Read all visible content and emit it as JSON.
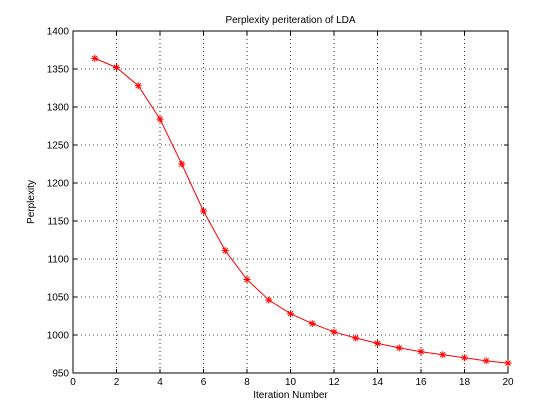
{
  "chart_data": {
    "type": "line",
    "title": "Perplexity periteration of LDA",
    "xlabel": "Iteration Number",
    "ylabel": "Perplexity",
    "xlim": [
      0,
      20
    ],
    "ylim": [
      950,
      1400
    ],
    "x_ticks": [
      0,
      2,
      4,
      6,
      8,
      10,
      12,
      14,
      16,
      18,
      20
    ],
    "y_ticks": [
      950,
      1000,
      1050,
      1100,
      1150,
      1200,
      1250,
      1300,
      1350,
      1400
    ],
    "grid": true,
    "grid_style": "dotted",
    "legend": "none",
    "series": [
      {
        "color": "#ff0000",
        "marker": "asterisk",
        "x": [
          1,
          2,
          3,
          4,
          5,
          6,
          7,
          8,
          9,
          10,
          11,
          12,
          13,
          14,
          15,
          16,
          17,
          18,
          19,
          20
        ],
        "values": [
          1364,
          1352,
          1328,
          1284,
          1225,
          1163,
          1111,
          1073,
          1046,
          1028,
          1015,
          1004,
          996,
          989,
          983,
          978,
          974,
          970,
          966,
          963
        ]
      }
    ]
  }
}
